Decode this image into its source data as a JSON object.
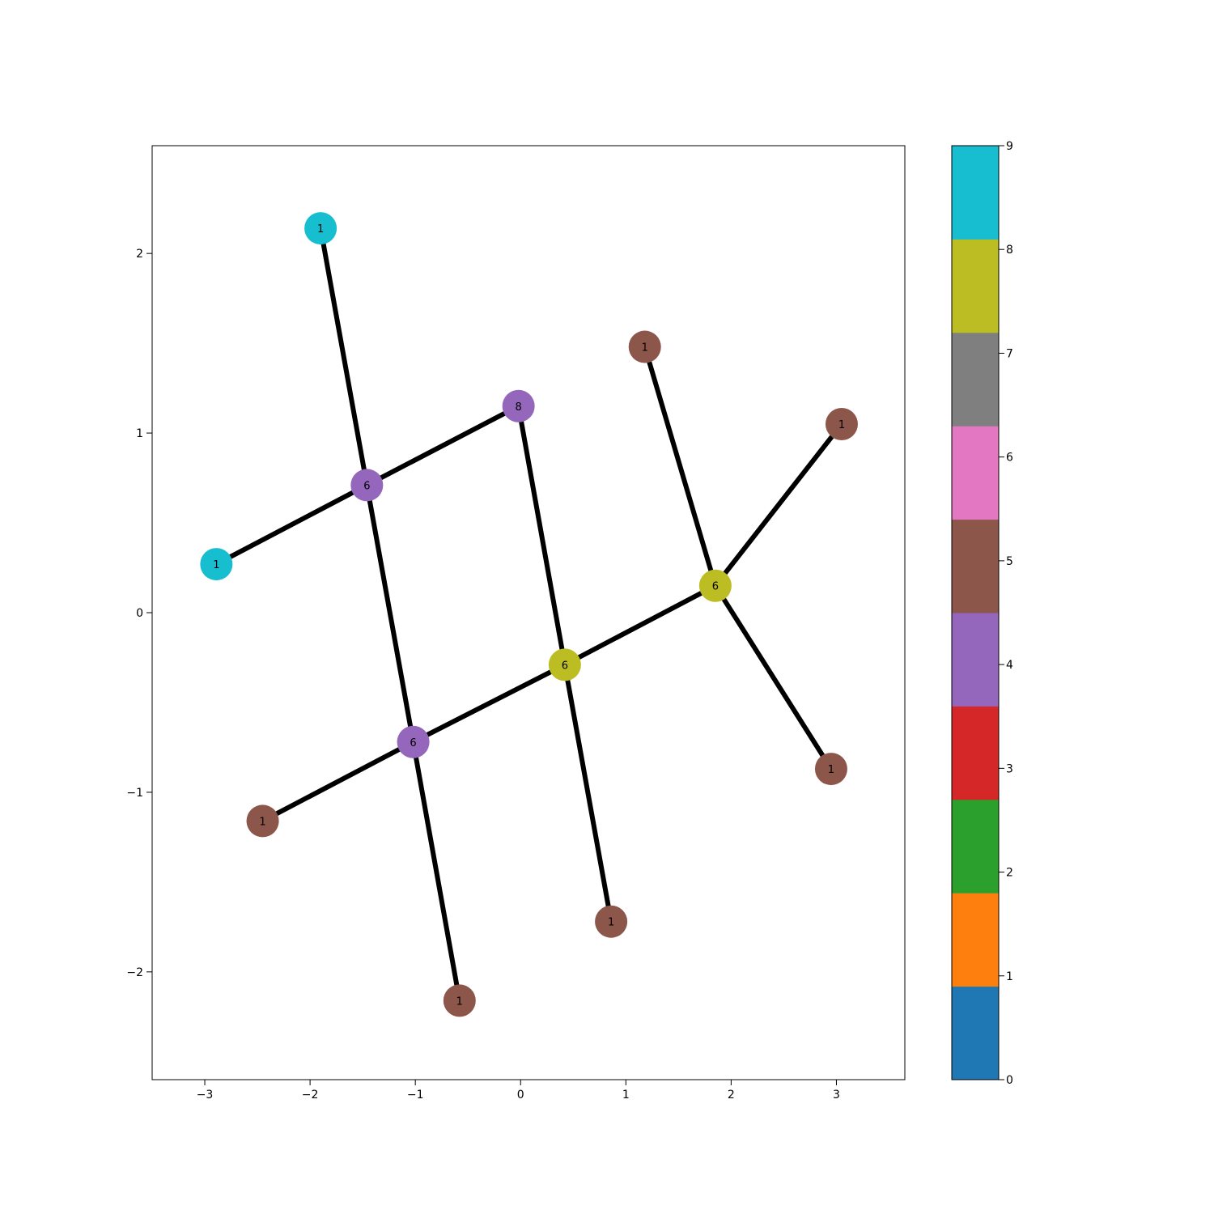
{
  "chart_data": {
    "type": "scatter",
    "subtype": "network-graph",
    "title": "",
    "xlabel": "",
    "ylabel": "",
    "xlim": [
      -3.5,
      3.65
    ],
    "ylim": [
      -2.6,
      2.6
    ],
    "xticks": [
      -3,
      -2,
      -1,
      0,
      1,
      2,
      3
    ],
    "xtick_labels": [
      "−3",
      "−2",
      "−1",
      "0",
      "1",
      "2",
      "3"
    ],
    "yticks": [
      -2,
      -1,
      0,
      1,
      2
    ],
    "ytick_labels": [
      "−2",
      "−1",
      "0",
      "1",
      "2"
    ],
    "grid": false,
    "edge_color": "#000000",
    "nodes": [
      {
        "id": "n0",
        "x": -1.9,
        "y": 2.14,
        "label": "1",
        "value": 9
      },
      {
        "id": "n1",
        "x": -1.46,
        "y": 0.71,
        "label": "6",
        "value": 4
      },
      {
        "id": "n2",
        "x": -2.89,
        "y": 0.27,
        "label": "1",
        "value": 9
      },
      {
        "id": "n3",
        "x": -0.02,
        "y": 1.15,
        "label": "8",
        "value": 4
      },
      {
        "id": "n4",
        "x": -1.02,
        "y": -0.72,
        "label": "6",
        "value": 4
      },
      {
        "id": "n5",
        "x": 0.42,
        "y": -0.29,
        "label": "6",
        "value": 8
      },
      {
        "id": "n6",
        "x": 1.85,
        "y": 0.15,
        "label": "6",
        "value": 8
      },
      {
        "id": "n7",
        "x": 1.18,
        "y": 1.48,
        "label": "1",
        "value": 5
      },
      {
        "id": "n8",
        "x": 3.05,
        "y": 1.05,
        "label": "1",
        "value": 5
      },
      {
        "id": "n9",
        "x": 2.95,
        "y": -0.87,
        "label": "1",
        "value": 5
      },
      {
        "id": "n10",
        "x": -2.45,
        "y": -1.16,
        "label": "1",
        "value": 5
      },
      {
        "id": "n11",
        "x": -0.58,
        "y": -2.16,
        "label": "1",
        "value": 5
      },
      {
        "id": "n12",
        "x": 0.86,
        "y": -1.72,
        "label": "1",
        "value": 5
      }
    ],
    "edges": [
      [
        "n0",
        "n1"
      ],
      [
        "n1",
        "n4"
      ],
      [
        "n4",
        "n11"
      ],
      [
        "n2",
        "n1"
      ],
      [
        "n1",
        "n3"
      ],
      [
        "n3",
        "n5"
      ],
      [
        "n5",
        "n12"
      ],
      [
        "n10",
        "n4"
      ],
      [
        "n4",
        "n5"
      ],
      [
        "n5",
        "n6"
      ],
      [
        "n7",
        "n6"
      ],
      [
        "n8",
        "n6"
      ],
      [
        "n6",
        "n9"
      ]
    ],
    "colorbar": {
      "min": 0,
      "max": 9,
      "ticks": [
        0,
        1,
        2,
        3,
        4,
        5,
        6,
        7,
        8,
        9
      ],
      "tick_labels": [
        "0",
        "1",
        "2",
        "3",
        "4",
        "5",
        "6",
        "7",
        "8",
        "9"
      ],
      "colors": [
        "#1f77b4",
        "#ff7f0e",
        "#2ca02c",
        "#d62728",
        "#9467bd",
        "#8c564b",
        "#e377c2",
        "#7f7f7f",
        "#bcbd22",
        "#17becf"
      ]
    }
  }
}
